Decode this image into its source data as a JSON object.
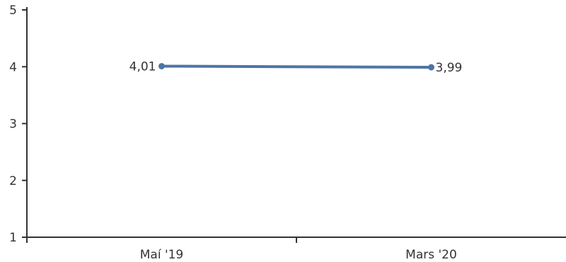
{
  "chart_data": {
    "type": "line",
    "categories": [
      "Maí '19",
      "Mars '20"
    ],
    "series": [
      {
        "values": [
          4.01,
          3.99
        ],
        "value_labels": [
          "4,01",
          "3,99"
        ],
        "color": "#4e75a4"
      }
    ],
    "y_ticks": [
      "1",
      "2",
      "3",
      "4",
      "5"
    ],
    "ylim": [
      1,
      5
    ],
    "grid": false,
    "legend": "none"
  }
}
